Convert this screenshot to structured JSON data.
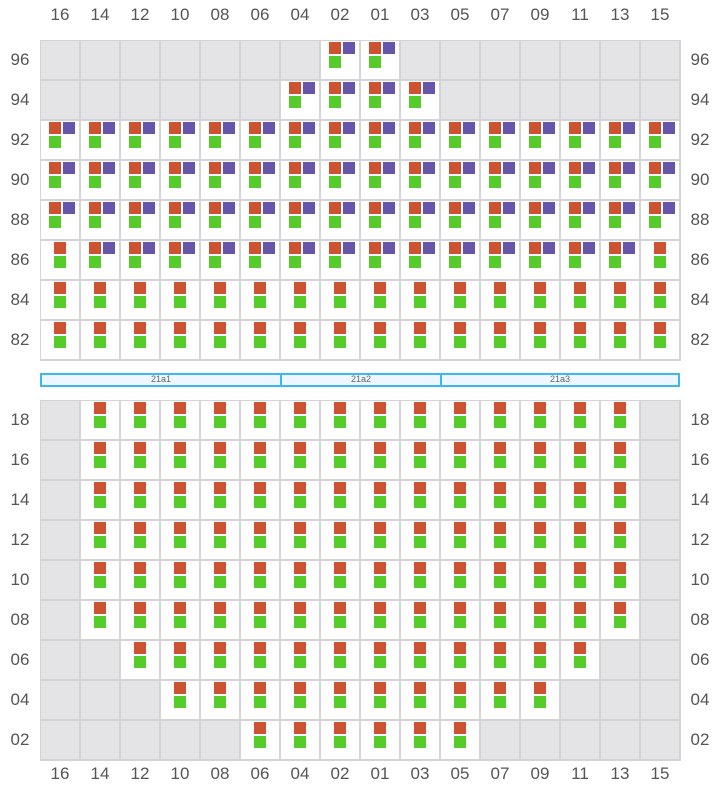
{
  "colors": {
    "orange": "#cc5230",
    "purple": "#6655aa",
    "green": "#55cc2a",
    "empty": "#e4e4e7",
    "divider": "#3bb8ee"
  },
  "columns": [
    "16",
    "14",
    "12",
    "10",
    "08",
    "06",
    "04",
    "02",
    "01",
    "03",
    "05",
    "07",
    "09",
    "11",
    "13",
    "15"
  ],
  "top_block": {
    "rows": [
      {
        "label": "96",
        "cells": [
          "",
          "",
          "",
          "",
          "",
          "",
          "",
          "OPG",
          "OPG",
          "",
          "",
          "",
          "",
          "",
          "",
          ""
        ]
      },
      {
        "label": "94",
        "cells": [
          "",
          "",
          "",
          "",
          "",
          "",
          "OPG",
          "OPG",
          "OPG",
          "OPG",
          "",
          "",
          "",
          "",
          "",
          ""
        ]
      },
      {
        "label": "92",
        "cells": [
          "OPG",
          "OPG",
          "OPG",
          "OPG",
          "OPG",
          "OPG",
          "OPG",
          "OPG",
          "OPG",
          "OPG",
          "OPG",
          "OPG",
          "OPG",
          "OPG",
          "OPG",
          "OPG"
        ]
      },
      {
        "label": "90",
        "cells": [
          "OPG",
          "OPG",
          "OPG",
          "OPG",
          "OPG",
          "OPG",
          "OPG",
          "OPG",
          "OPG",
          "OPG",
          "OPG",
          "OPG",
          "OPG",
          "OPG",
          "OPG",
          "OPG"
        ]
      },
      {
        "label": "88",
        "cells": [
          "OPG",
          "OPG",
          "OPG",
          "OPG",
          "OPG",
          "OPG",
          "OPG",
          "OPG",
          "OPG",
          "OPG",
          "OPG",
          "OPG",
          "OPG",
          "OPG",
          "OPG",
          "OPG"
        ]
      },
      {
        "label": "86",
        "cells": [
          "OG",
          "OPG",
          "OPG",
          "OPG",
          "OPG",
          "OPG",
          "OPG",
          "OPG",
          "OPG",
          "OPG",
          "OPG",
          "OPG",
          "OPG",
          "OPG",
          "OPG",
          "OG"
        ]
      },
      {
        "label": "84",
        "cells": [
          "OG",
          "OG",
          "OG",
          "OG",
          "OG",
          "OG",
          "OG",
          "OG",
          "OG",
          "OG",
          "OG",
          "OG",
          "OG",
          "OG",
          "OG",
          "OG"
        ]
      },
      {
        "label": "82",
        "cells": [
          "OG",
          "OG",
          "OG",
          "OG",
          "OG",
          "OG",
          "OG",
          "OG",
          "OG",
          "OG",
          "OG",
          "OG",
          "OG",
          "OG",
          "OG",
          "OG"
        ]
      }
    ]
  },
  "sections": [
    {
      "label": "21a1",
      "span": 6
    },
    {
      "label": "21a2",
      "span": 4
    },
    {
      "label": "21a3",
      "span": 6
    }
  ],
  "bottom_block": {
    "rows": [
      {
        "label": "18",
        "cells": [
          "",
          "OG",
          "OG",
          "OG",
          "OG",
          "OG",
          "OG",
          "OG",
          "OG",
          "OG",
          "OG",
          "OG",
          "OG",
          "OG",
          "OG",
          ""
        ]
      },
      {
        "label": "16",
        "cells": [
          "",
          "OG",
          "OG",
          "OG",
          "OG",
          "OG",
          "OG",
          "OG",
          "OG",
          "OG",
          "OG",
          "OG",
          "OG",
          "OG",
          "OG",
          ""
        ]
      },
      {
        "label": "14",
        "cells": [
          "",
          "OG",
          "OG",
          "OG",
          "OG",
          "OG",
          "OG",
          "OG",
          "OG",
          "OG",
          "OG",
          "OG",
          "OG",
          "OG",
          "OG",
          ""
        ]
      },
      {
        "label": "12",
        "cells": [
          "",
          "OG",
          "OG",
          "OG",
          "OG",
          "OG",
          "OG",
          "OG",
          "OG",
          "OG",
          "OG",
          "OG",
          "OG",
          "OG",
          "OG",
          ""
        ]
      },
      {
        "label": "10",
        "cells": [
          "",
          "OG",
          "OG",
          "OG",
          "OG",
          "OG",
          "OG",
          "OG",
          "OG",
          "OG",
          "OG",
          "OG",
          "OG",
          "OG",
          "OG",
          ""
        ]
      },
      {
        "label": "08",
        "cells": [
          "",
          "OG",
          "OG",
          "OG",
          "OG",
          "OG",
          "OG",
          "OG",
          "OG",
          "OG",
          "OG",
          "OG",
          "OG",
          "OG",
          "OG",
          ""
        ]
      },
      {
        "label": "06",
        "cells": [
          "",
          "",
          "OG",
          "OG",
          "OG",
          "OG",
          "OG",
          "OG",
          "OG",
          "OG",
          "OG",
          "OG",
          "OG",
          "OG",
          "",
          ""
        ]
      },
      {
        "label": "04",
        "cells": [
          "",
          "",
          "",
          "OG",
          "OG",
          "OG",
          "OG",
          "OG",
          "OG",
          "OG",
          "OG",
          "OG",
          "OG",
          "",
          "",
          ""
        ]
      },
      {
        "label": "02",
        "cells": [
          "",
          "",
          "",
          "",
          "",
          "OG",
          "OG",
          "OG",
          "OG",
          "OG",
          "OG",
          "",
          "",
          "",
          "",
          ""
        ]
      }
    ]
  }
}
